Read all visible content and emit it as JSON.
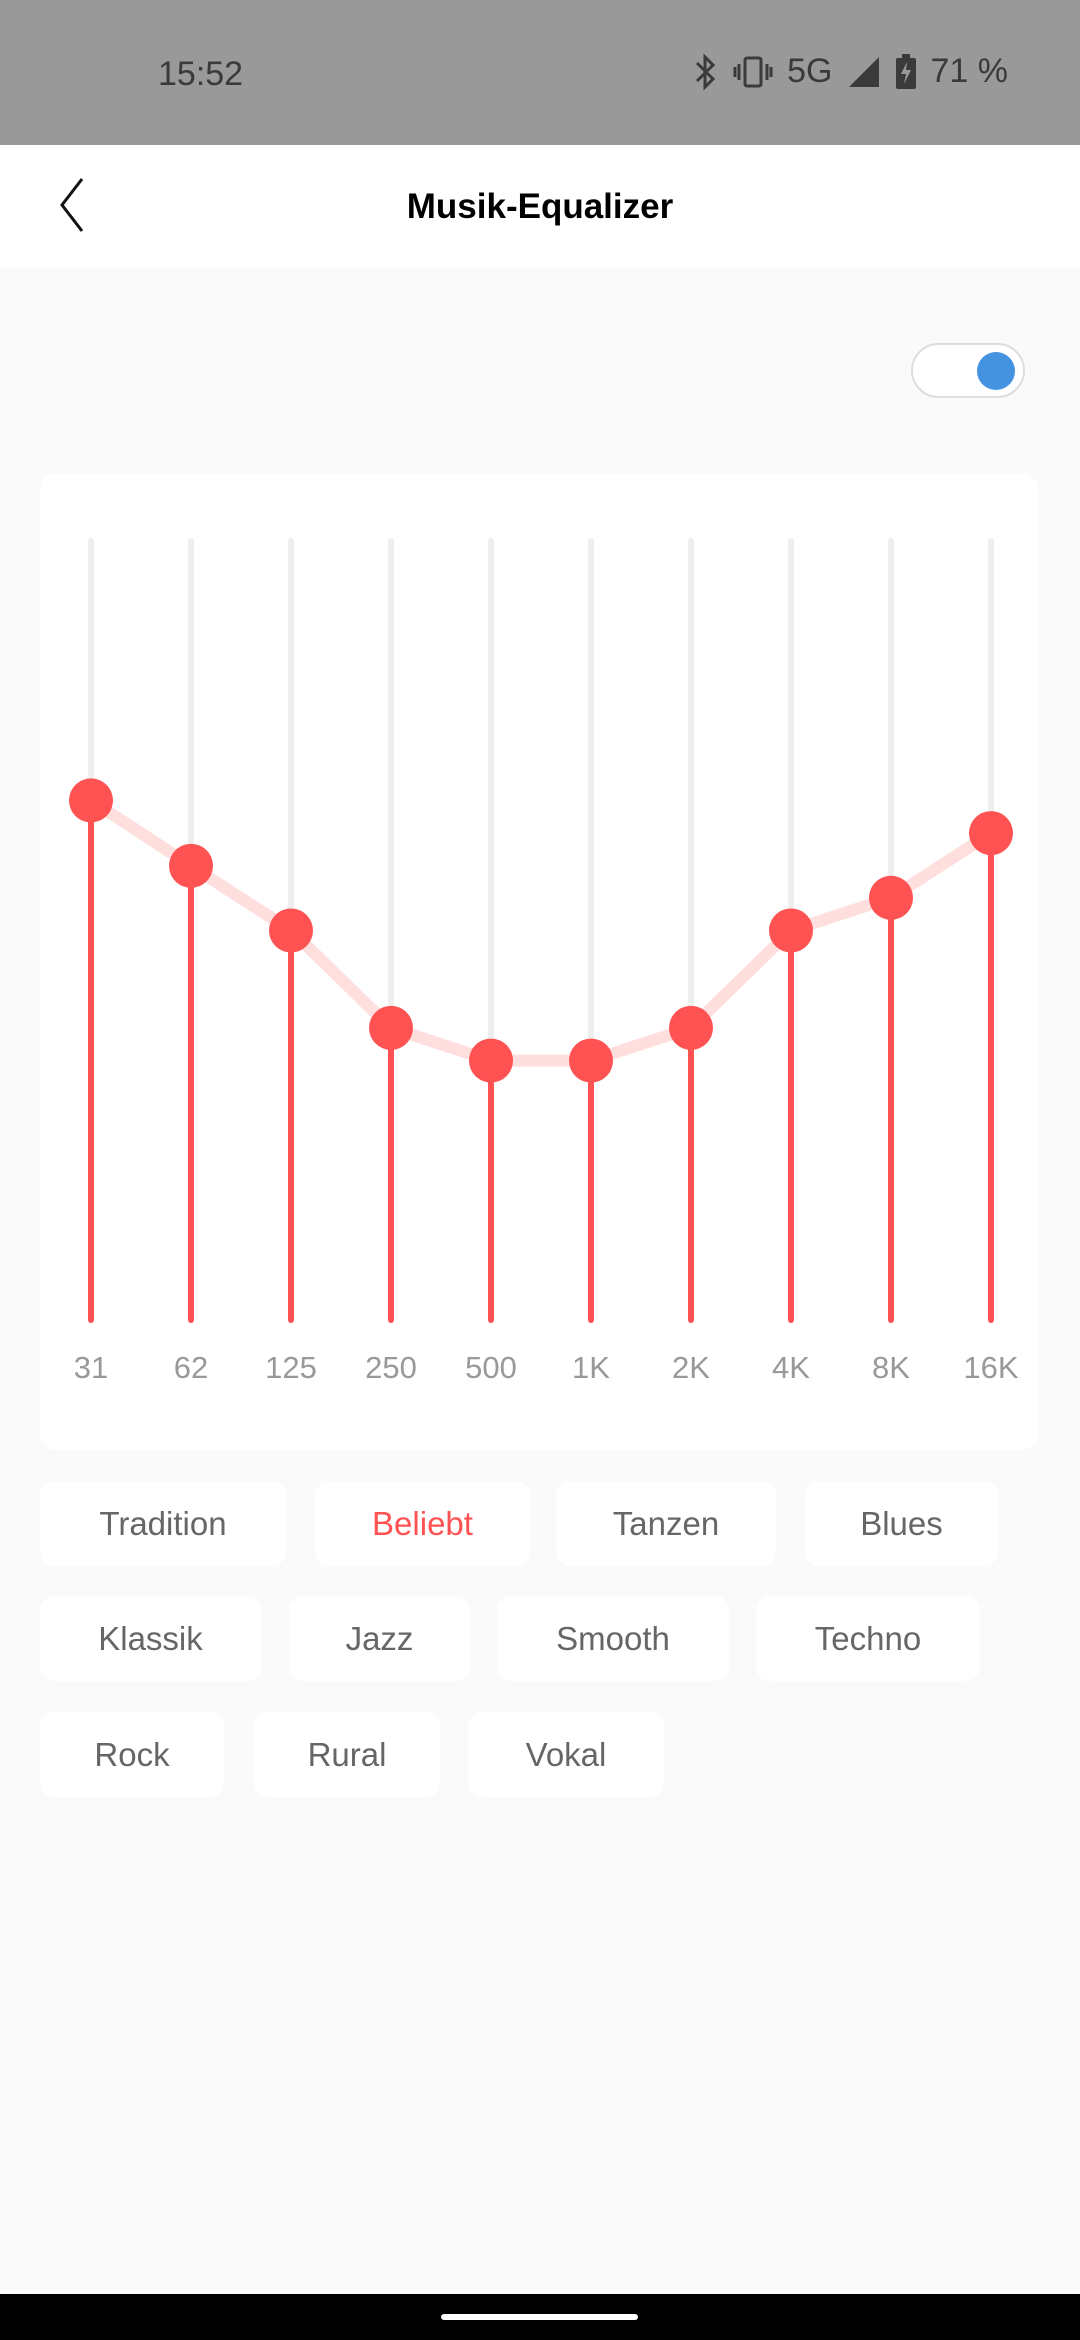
{
  "status_bar": {
    "time": "15:52",
    "network": "5G",
    "battery": "71 %",
    "icons": [
      "bluetooth-icon",
      "vibrate-icon",
      "signal-icon",
      "battery-charging-icon"
    ]
  },
  "header": {
    "title": "Musik-Equalizer",
    "back_icon": "chevron-left-icon"
  },
  "toggle": {
    "enabled": true,
    "color": "#4393e0"
  },
  "chart_data": {
    "type": "line",
    "bands": [
      "31",
      "62",
      "125",
      "250",
      "500",
      "1K",
      "2K",
      "4K",
      "8K",
      "16K"
    ],
    "levels": [
      0.667,
      0.583,
      0.5,
      0.375,
      0.333,
      0.333,
      0.375,
      0.5,
      0.542,
      0.625
    ],
    "level_range": [
      0,
      1
    ],
    "colors": {
      "active": "#ff5252",
      "curve": "#ffdede",
      "track": "#eeeeee",
      "label": "#999999"
    }
  },
  "presets": {
    "selected": "Beliebt",
    "items": [
      "Tradition",
      "Beliebt",
      "Tanzen",
      "Blues",
      "Klassik",
      "Jazz",
      "Smooth",
      "Techno",
      "Rock",
      "Rural",
      "Vokal"
    ]
  }
}
